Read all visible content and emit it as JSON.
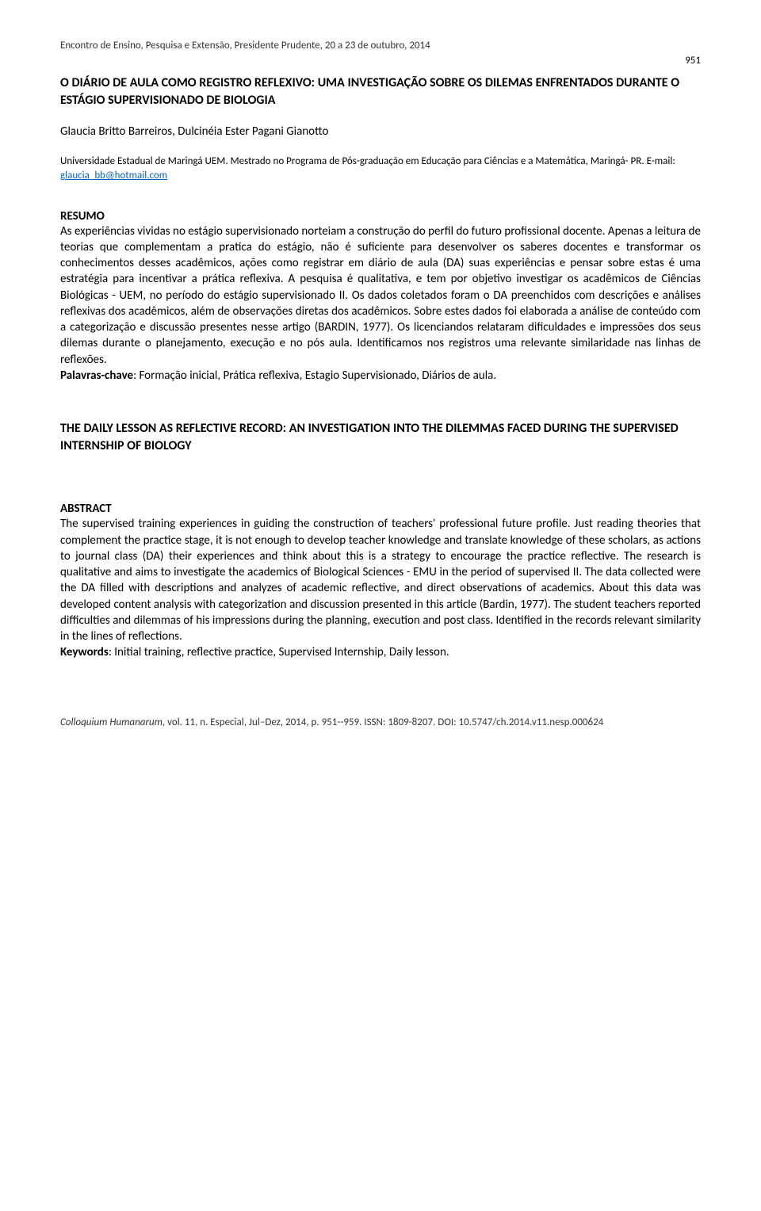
{
  "header": {
    "conference": "Encontro de Ensino, Pesquisa e Extensão, Presidente Prudente, 20 a 23 de outubro, 2014",
    "page_number": "951"
  },
  "title": "O DIÁRIO DE AULA COMO REGISTRO REFLEXIVO: UMA INVESTIGAÇÃO SOBRE OS DILEMAS ENFRENTADOS DURANTE O ESTÁGIO SUPERVISIONADO DE BIOLOGIA",
  "authors": "Glaucia Britto Barreiros, Dulcinéia Ester Pagani Gianotto",
  "affiliation": {
    "text_before": "Universidade Estadual de Maringá UEM. Mestrado no Programa de Pós-graduação em Educação para Ciências e a Matemática, Maringá- PR. E-mail: ",
    "email": "glaucia_bb@hotmail.com"
  },
  "resumo": {
    "heading": "RESUMO",
    "body": "As experiências vividas no estágio supervisionado norteiam a construção do perfil do futuro profissional docente. Apenas a leitura de teorias que complementam a pratica do estágio, não é suficiente para desenvolver os saberes docentes e transformar os conhecimentos desses acadêmicos, ações como registrar em diário de aula (DA) suas experiências e pensar sobre estas é uma estratégia para incentivar a prática reflexiva. A pesquisa é qualitativa, e tem por objetivo investigar os acadêmicos de Ciências Biológicas - UEM, no período do estágio supervisionado II. Os dados coletados foram o DA preenchidos com descrições e análises reflexivas dos acadêmicos, além de observações diretas dos acadêmicos. Sobre estes dados foi elaborada a análise de conteúdo com a categorização e discussão presentes nesse artigo (BARDIN, 1977). Os licenciandos relataram dificuldades e impressões dos seus dilemas durante o planejamento, execução e no pós aula. Identificamos nos registros uma relevante similaridade nas linhas de reflexões.",
    "keywords_label": "Palavras-chave",
    "keywords": ": Formação inicial, Prática reflexiva, Estagio Supervisionado, Diários de aula."
  },
  "title_en": "THE DAILY LESSON AS REFLECTIVE RECORD: AN INVESTIGATION INTO THE DILEMMAS FACED DURING THE SUPERVISED INTERNSHIP OF BIOLOGY",
  "abstract": {
    "heading": "ABSTRACT",
    "body": "The supervised training experiences in guiding the construction of teachers' professional future profile. Just reading theories that complement the practice stage, it is not enough to develop teacher knowledge and translate knowledge of these scholars, as actions to journal class (DA) their experiences and think about this is a strategy to encourage the practice reflective. The research is qualitative and aims to investigate the academics of Biological Sciences - EMU in the period of supervised II. The data collected were the DA filled with descriptions and analyzes of academic reflective, and direct observations of academics. About this data was developed content analysis with categorization and discussion presented in this article (Bardin, 1977). The student teachers reported difficulties and dilemmas of his impressions during the planning, execution and post class. Identified in the records relevant similarity in the lines of reflections.",
    "keywords_label": "Keywords",
    "keywords": ": Initial training, reflective practice, Supervised Internship, Daily lesson."
  },
  "footer": {
    "journal": "Colloquium Humanarum",
    "details": ", vol. 11, n. Especial, Jul–Dez, 2014, p. 951--959. ISSN: 1809-8207. DOI: 10.5747/ch.2014.v11.nesp.000624"
  }
}
